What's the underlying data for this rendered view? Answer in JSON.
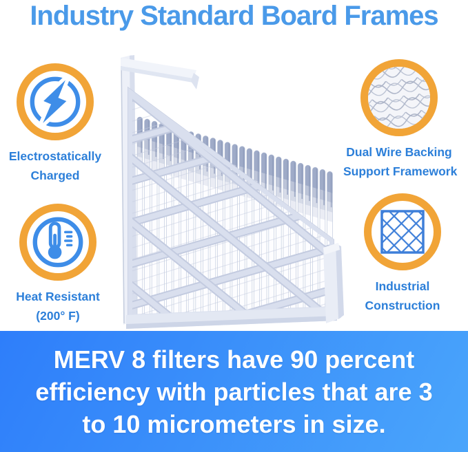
{
  "title": "Industry Standard Board Frames",
  "colors": {
    "title_blue": "#4a9ae9",
    "label_blue": "#2c7fd9",
    "ring_orange": "#f1a437",
    "icon_blue": "#3e8de8",
    "banner_start": "#2e7efa",
    "banner_end": "#4aa5fb",
    "banner_text": "#ffffff"
  },
  "features": [
    {
      "id": "electrostatic",
      "icon": "lightning-icon",
      "label_lines": [
        "Electrostatically",
        "Charged"
      ]
    },
    {
      "id": "wire-backing",
      "icon": "wire-mesh-icon",
      "label_lines": [
        "Dual Wire Backing",
        "Support Framework"
      ]
    },
    {
      "id": "heat-resistant",
      "icon": "thermometer-icon",
      "label_lines": [
        "Heat Resistant",
        "(200° F)"
      ]
    },
    {
      "id": "industrial",
      "icon": "lattice-icon",
      "label_lines": [
        "Industrial",
        "Construction"
      ]
    }
  ],
  "product_image": "air-filter-photo",
  "banner": {
    "lines": [
      "MERV 8 filters have 90 percent",
      "efficiency with particles that are 3",
      "to 10 micrometers in size."
    ]
  }
}
